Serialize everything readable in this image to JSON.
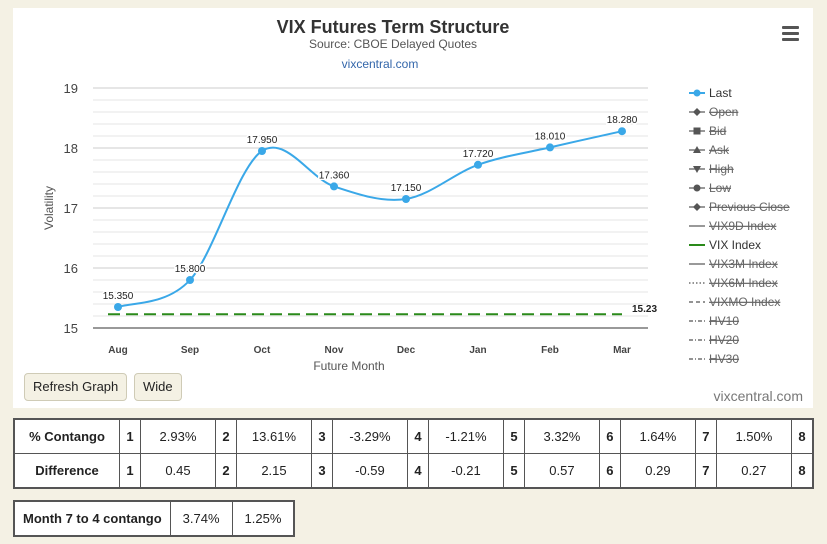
{
  "chart_data": {
    "type": "line",
    "title": "VIX Futures Term Structure",
    "subtitle": "Source: CBOE Delayed Quotes",
    "link": "vixcentral.com",
    "xlabel": "Future Month",
    "ylabel": "Volatility",
    "ylim": [
      15,
      19
    ],
    "yticks": [
      "15",
      "16",
      "17",
      "18",
      "19"
    ],
    "categories": [
      "Aug",
      "Sep",
      "Oct",
      "Nov",
      "Dec",
      "Jan",
      "Feb",
      "Mar"
    ],
    "series": [
      {
        "name": "Last",
        "values": [
          15.35,
          15.8,
          17.95,
          17.36,
          17.15,
          17.72,
          18.01,
          18.28
        ],
        "labels": [
          "15.350",
          "15.800",
          "17.950",
          "17.360",
          "17.150",
          "17.720",
          "18.010",
          "18.280"
        ],
        "color": "#3aa8e8"
      },
      {
        "name": "VIX Index",
        "values": [
          15.23,
          15.23,
          15.23,
          15.23,
          15.23,
          15.23,
          15.23,
          15.23
        ],
        "end_label": "15.23",
        "color": "#2a8a1a"
      }
    ],
    "grid": true,
    "legend_position": "right",
    "legend": [
      {
        "label": "Last",
        "symbol": "circle-line",
        "active": true
      },
      {
        "label": "Open",
        "symbol": "diamond-line",
        "active": false
      },
      {
        "label": "Bid",
        "symbol": "square-line",
        "active": false
      },
      {
        "label": "Ask",
        "symbol": "triangle-line",
        "active": false
      },
      {
        "label": "High",
        "symbol": "triangle-down-line",
        "active": false
      },
      {
        "label": "Low",
        "symbol": "circle-line",
        "active": false
      },
      {
        "label": "Previous Close",
        "symbol": "diamond-line",
        "active": false
      },
      {
        "label": "VIX9D Index",
        "symbol": "line",
        "active": false
      },
      {
        "label": "VIX Index",
        "symbol": "line-green",
        "active": true
      },
      {
        "label": "VIX3M Index",
        "symbol": "line",
        "active": false
      },
      {
        "label": "VIX6M Index",
        "symbol": "dotted",
        "active": false
      },
      {
        "label": "VIXMO Index",
        "symbol": "dashed",
        "active": false
      },
      {
        "label": "HV10",
        "symbol": "dashdot",
        "active": false
      },
      {
        "label": "HV20",
        "symbol": "dashdot",
        "active": false
      },
      {
        "label": "HV30",
        "symbol": "dashdot",
        "active": false
      }
    ]
  },
  "buttons": {
    "refresh": "Refresh Graph",
    "wide": "Wide"
  },
  "credit": "vixcentral.com",
  "contango_table": {
    "rows": [
      {
        "label": "% Contango",
        "cells": [
          [
            "1",
            "2.93%"
          ],
          [
            "2",
            "13.61%"
          ],
          [
            "3",
            "-3.29%"
          ],
          [
            "4",
            "-1.21%"
          ],
          [
            "5",
            "3.32%"
          ],
          [
            "6",
            "1.64%"
          ],
          [
            "7",
            "1.50%"
          ],
          [
            "8",
            ""
          ]
        ]
      },
      {
        "label": "Difference",
        "cells": [
          [
            "1",
            "0.45"
          ],
          [
            "2",
            "2.15"
          ],
          [
            "3",
            "-0.59"
          ],
          [
            "4",
            "-0.21"
          ],
          [
            "5",
            "0.57"
          ],
          [
            "6",
            "0.29"
          ],
          [
            "7",
            "0.27"
          ],
          [
            "8",
            ""
          ]
        ]
      }
    ]
  },
  "month_table": {
    "label": "Month 7 to 4 contango",
    "values": [
      "3.74%",
      "1.25%"
    ]
  }
}
